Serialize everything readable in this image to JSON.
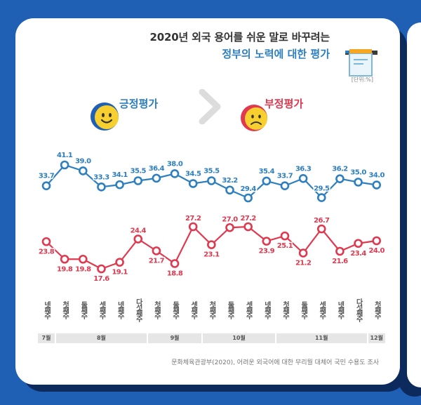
{
  "title_line1": "2020년 외국 용어를 쉬운 말로 바꾸려는",
  "title_line2": "정부의 노력에 대한 평가",
  "unit": "[단위:%]",
  "legend": {
    "positive": "긍정평가",
    "negative": "부정평가"
  },
  "colors": {
    "positive": "#2d7fc0",
    "negative": "#e0394f",
    "background": "#1f5fb4"
  },
  "icons": [
    "smiley-face-icon",
    "chevron-right-icon",
    "sad-face-icon",
    "document-icon"
  ],
  "chart_data": {
    "type": "line",
    "categories": [
      "넷째주",
      "첫째주",
      "둘째주",
      "셋째주",
      "넷째주",
      "다섯째주",
      "첫째주",
      "둘째주",
      "셋째주",
      "첫째주",
      "둘째주",
      "셋째주",
      "넷째주",
      "첫째주",
      "둘째주",
      "셋째주",
      "넷째주",
      "다섯째주",
      "첫째주"
    ],
    "month_groups": [
      {
        "label": "7월",
        "start": 0,
        "end": 0
      },
      {
        "label": "8월",
        "start": 1,
        "end": 5
      },
      {
        "label": "9월",
        "start": 6,
        "end": 8
      },
      {
        "label": "10월",
        "start": 9,
        "end": 12
      },
      {
        "label": "11월",
        "start": 13,
        "end": 17
      },
      {
        "label": "12월",
        "start": 18,
        "end": 18
      }
    ],
    "series": [
      {
        "name": "긍정평가",
        "values": [
          33.7,
          41.1,
          39.0,
          33.3,
          34.1,
          35.5,
          36.4,
          38.0,
          34.5,
          35.5,
          32.2,
          29.4,
          35.4,
          33.7,
          36.3,
          29.5,
          36.2,
          35.0,
          34.0
        ]
      },
      {
        "name": "부정평가",
        "values": [
          23.8,
          19.8,
          19.8,
          17.6,
          19.1,
          24.4,
          21.7,
          18.8,
          27.2,
          23.1,
          27.0,
          27.2,
          23.9,
          25.1,
          21.2,
          26.7,
          21.6,
          23.4,
          24.0
        ]
      }
    ],
    "grid": false,
    "legend_position": "top"
  },
  "source": "문화체육관광부(2020), 어려운 외국어에 대한 무리뭘 대체어 국민 수용도 조사"
}
